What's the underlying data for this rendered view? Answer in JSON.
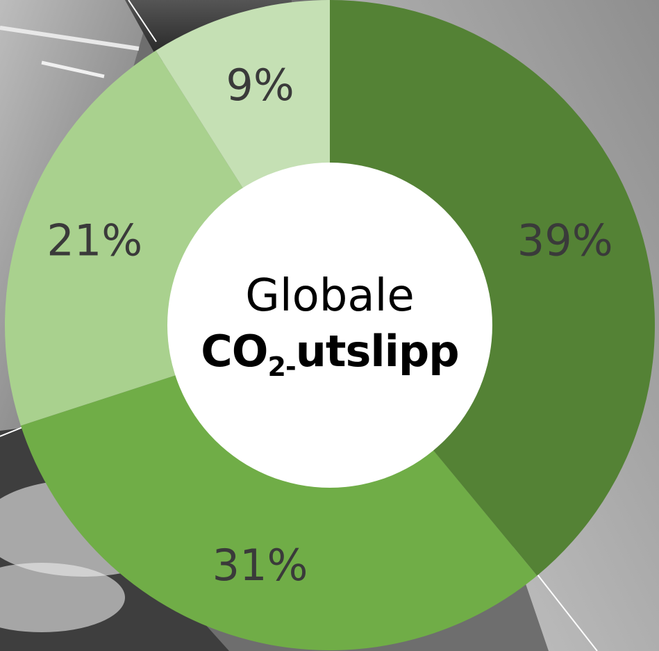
{
  "chart_data": {
    "type": "pie",
    "title": "",
    "center_label": {
      "line1": "Globale",
      "line2_prefix": "CO",
      "line2_subscript": "2-",
      "line2_suffix": "utslipp"
    },
    "slices": [
      {
        "label": "39%",
        "value": 39,
        "color": "#548235"
      },
      {
        "label": "31%",
        "value": 31,
        "color": "#70ad47"
      },
      {
        "label": "21%",
        "value": 21,
        "color": "#a9d18e"
      },
      {
        "label": "9%",
        "value": 9,
        "color": "#c5e0b4"
      }
    ],
    "start_angle": "top",
    "direction": "clockwise",
    "legend": "none"
  },
  "background": {
    "style": "grayscale photo collage",
    "colors": [
      "#4a4a4a",
      "#8c8c8c",
      "#bdbdbd"
    ]
  }
}
